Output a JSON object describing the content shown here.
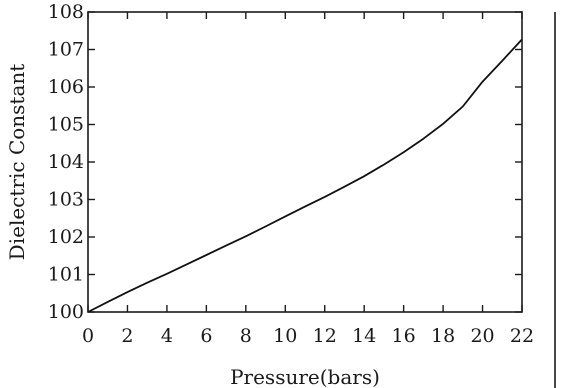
{
  "chart_data": {
    "type": "line",
    "title": "",
    "xlabel": "Pressure(bars)",
    "ylabel": "Dielectric Constant",
    "xlim": [
      0,
      22
    ],
    "ylim": [
      100,
      108
    ],
    "x_ticks": [
      "0",
      "2",
      "4",
      "6",
      "8",
      "10",
      "12",
      "14",
      "16",
      "18",
      "20",
      "22"
    ],
    "y_ticks": [
      "100",
      "101",
      "102",
      "103",
      "104",
      "105",
      "106",
      "107",
      "108"
    ],
    "grid": false,
    "legend": false,
    "series": [
      {
        "x": [
          0,
          1,
          2,
          3,
          4,
          5,
          6,
          7,
          8,
          9,
          10,
          11,
          12,
          13,
          14,
          15,
          16,
          17,
          18,
          19,
          20,
          21,
          22
        ],
        "y": [
          100.0,
          100.27,
          100.53,
          100.78,
          101.02,
          101.27,
          101.52,
          101.77,
          102.02,
          102.28,
          102.55,
          102.81,
          103.07,
          103.34,
          103.62,
          103.93,
          104.26,
          104.62,
          105.02,
          105.48,
          106.14,
          106.7,
          107.27
        ]
      }
    ],
    "line_color": "#111111"
  }
}
